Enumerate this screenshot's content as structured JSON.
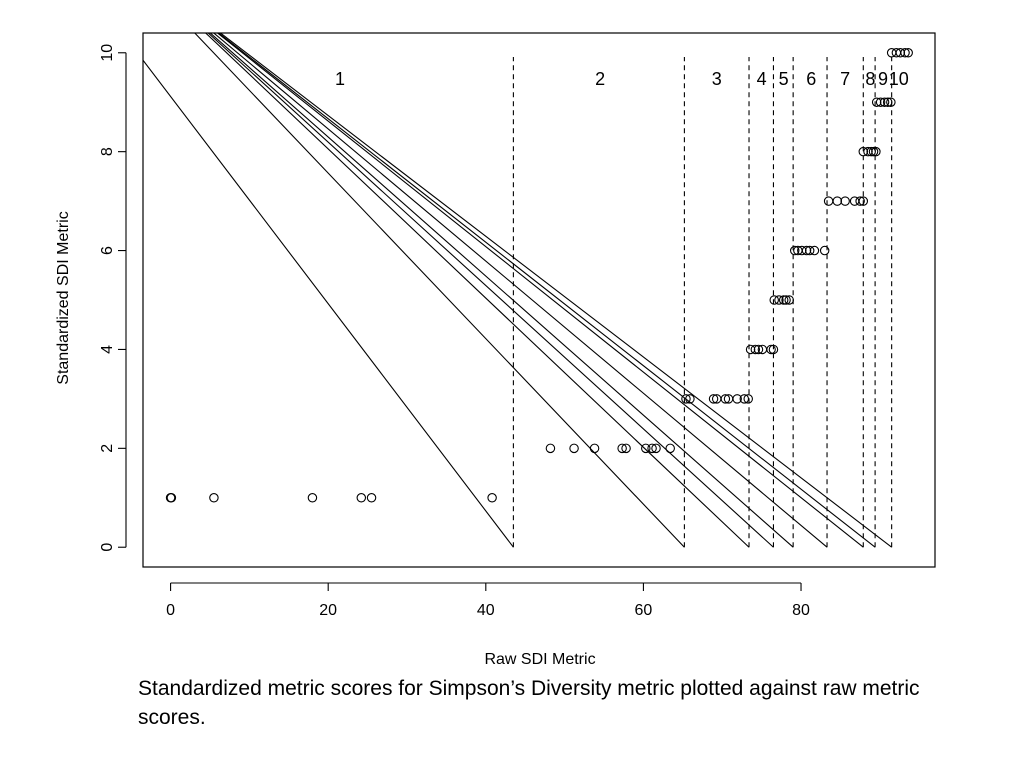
{
  "caption": "Standardized metric scores for Simpson’s Diversity metric plotted against raw metric scores.",
  "chart_data": {
    "type": "scatter",
    "title": "",
    "xlabel": "Raw SDI Metric",
    "ylabel": "Standardized SDI Metric",
    "xlim": [
      -3.5,
      97
    ],
    "ylim": [
      -0.4,
      10.4
    ],
    "xticks": [
      0,
      20,
      40,
      60,
      80
    ],
    "yticks": [
      0,
      2,
      4,
      6,
      8,
      10
    ],
    "points": [
      [
        0,
        1
      ],
      [
        0.1,
        1
      ],
      [
        5.5,
        1
      ],
      [
        18,
        1
      ],
      [
        24.2,
        1
      ],
      [
        25.5,
        1
      ],
      [
        40.8,
        1
      ],
      [
        48.2,
        2
      ],
      [
        51.2,
        2
      ],
      [
        53.8,
        2
      ],
      [
        57.3,
        2
      ],
      [
        57.8,
        2
      ],
      [
        60.3,
        2
      ],
      [
        61.1,
        2
      ],
      [
        61.6,
        2
      ],
      [
        63.4,
        2
      ],
      [
        65.4,
        3
      ],
      [
        65.9,
        3
      ],
      [
        68.9,
        3
      ],
      [
        69.3,
        3
      ],
      [
        70.4,
        3
      ],
      [
        70.8,
        3
      ],
      [
        71.9,
        3
      ],
      [
        72.8,
        3
      ],
      [
        73.3,
        3
      ],
      [
        73.6,
        4
      ],
      [
        74.2,
        4
      ],
      [
        74.6,
        4
      ],
      [
        75.1,
        4
      ],
      [
        76.2,
        4
      ],
      [
        76.5,
        4
      ],
      [
        76.6,
        5
      ],
      [
        77.2,
        5
      ],
      [
        77.8,
        5
      ],
      [
        78.1,
        5
      ],
      [
        78.5,
        5
      ],
      [
        79.2,
        6
      ],
      [
        79.6,
        6
      ],
      [
        80.1,
        6
      ],
      [
        80.7,
        6
      ],
      [
        81.1,
        6
      ],
      [
        81.7,
        6
      ],
      [
        83.0,
        6
      ],
      [
        83.5,
        7
      ],
      [
        84.6,
        7
      ],
      [
        85.6,
        7
      ],
      [
        86.8,
        7
      ],
      [
        87.5,
        7
      ],
      [
        87.9,
        7
      ],
      [
        87.9,
        8
      ],
      [
        88.5,
        8
      ],
      [
        88.9,
        8
      ],
      [
        89.2,
        8
      ],
      [
        89.5,
        8
      ],
      [
        89.6,
        9
      ],
      [
        90.1,
        9
      ],
      [
        90.6,
        9
      ],
      [
        91.0,
        9
      ],
      [
        91.4,
        9
      ],
      [
        91.5,
        10
      ],
      [
        92.1,
        10
      ],
      [
        92.6,
        10
      ],
      [
        93.2,
        10
      ],
      [
        93.6,
        10
      ]
    ],
    "cutoffs": [
      43.5,
      65.2,
      73.4,
      76.5,
      79.0,
      83.3,
      87.9,
      89.4,
      91.5
    ],
    "band_labels": [
      {
        "label": "1",
        "x": 21.5
      },
      {
        "label": "2",
        "x": 54.5
      },
      {
        "label": "3",
        "x": 69.3
      },
      {
        "label": "4",
        "x": 75.0
      },
      {
        "label": "5",
        "x": 77.8
      },
      {
        "label": "6",
        "x": 81.3
      },
      {
        "label": "7",
        "x": 85.6
      },
      {
        "label": "8",
        "x": 88.8
      },
      {
        "label": "9",
        "x": 90.4
      },
      {
        "label": "10",
        "x": 92.4
      }
    ],
    "diagonal_lines": [
      {
        "from": [
          -3.5,
          9.85
        ],
        "to": [
          43.5,
          0
        ]
      },
      {
        "from": [
          -3.5,
          11.5
        ],
        "to": [
          65.2,
          0
        ]
      },
      {
        "from": [
          -3.5,
          11.6
        ],
        "to": [
          73.4,
          0
        ]
      },
      {
        "from": [
          -3.5,
          11.6
        ],
        "to": [
          76.5,
          0
        ]
      },
      {
        "from": [
          -3.5,
          11.6
        ],
        "to": [
          79.0,
          0
        ]
      },
      {
        "from": [
          -3.5,
          11.6
        ],
        "to": [
          83.3,
          0
        ]
      },
      {
        "from": [
          -3.5,
          11.6
        ],
        "to": [
          87.9,
          0
        ]
      },
      {
        "from": [
          -3.5,
          11.6
        ],
        "to": [
          89.4,
          0
        ]
      },
      {
        "from": [
          -3.5,
          11.6
        ],
        "to": [
          91.5,
          0
        ]
      }
    ]
  }
}
